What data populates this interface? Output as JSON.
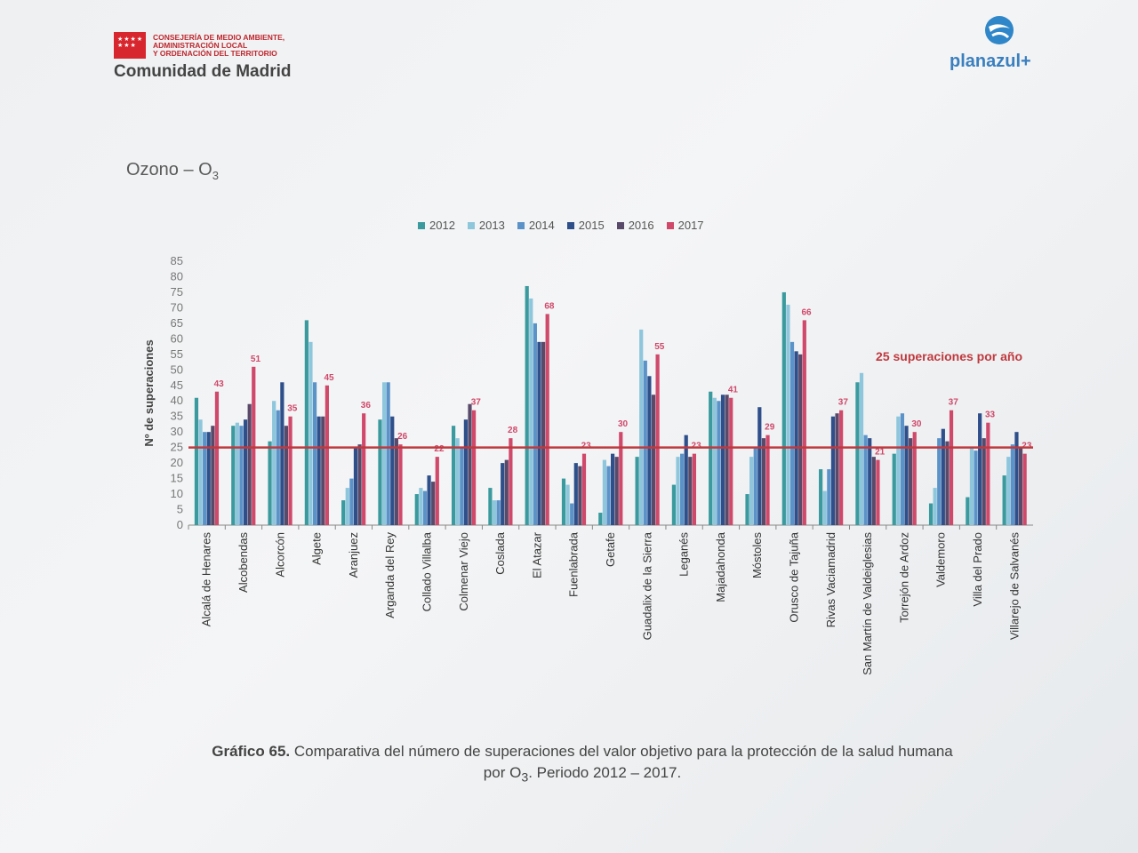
{
  "header": {
    "council_lines": [
      "CONSEJERÍA DE MEDIO AMBIENTE,",
      "ADMINISTRACIÓN LOCAL",
      "Y ORDENACIÓN DEL TERRITORIO"
    ],
    "region": "Comunidad de Madrid",
    "logo_text": "planazul+"
  },
  "section": {
    "title": "Ozono – O",
    "subscript": "3"
  },
  "caption": {
    "label": "Gráfico 65.",
    "text_line1": "Comparativa del número de superaciones del valor objetivo para la protección de la salud humana",
    "text_line2_pre": "por O",
    "text_line2_sub": "3",
    "text_line2_post": ". Periodo 2012 – 2017."
  },
  "colors": {
    "2012": "#3a9a9e",
    "2013": "#8ec6dc",
    "2014": "#5b93c9",
    "2015": "#2e4f8a",
    "2016": "#5a4a6a",
    "2017": "#d0486a",
    "threshold": "#c0393e"
  },
  "chart_data": {
    "type": "bar",
    "ylabel": "Nº de superaciones",
    "ylim": [
      0,
      85
    ],
    "yticks": [
      0,
      5,
      10,
      15,
      20,
      25,
      30,
      35,
      40,
      45,
      50,
      55,
      60,
      65,
      70,
      75,
      80,
      85
    ],
    "threshold": {
      "value": 25,
      "label": "25 superaciones por año"
    },
    "categories": [
      "Alcalá de Henares",
      "Alcobendas",
      "Alcorcón",
      "Algete",
      "Aranjuez",
      "Arganda del Rey",
      "Collado Villalba",
      "Colmenar Viejo",
      "Coslada",
      "El Atazar",
      "Fuenlabrada",
      "Getafe",
      "Guadalix de la Sierra",
      "Leganés",
      "Majadahonda",
      "Móstoles",
      "Orusco de Tajuña",
      "Rivas Vaciamadrid",
      "San Martín de Valdeiglesias",
      "Torrejón de Ardoz",
      "Valdemoro",
      "Villa del Prado",
      "Villarejo de Salvanés"
    ],
    "series": [
      {
        "name": "2012",
        "values": [
          41,
          32,
          27,
          66,
          8,
          34,
          10,
          32,
          12,
          77,
          15,
          4,
          22,
          13,
          43,
          10,
          75,
          18,
          46,
          23,
          7,
          9,
          16
        ]
      },
      {
        "name": "2013",
        "values": [
          34,
          33,
          40,
          59,
          12,
          46,
          12,
          28,
          8,
          73,
          13,
          21,
          63,
          22,
          41,
          22,
          71,
          11,
          49,
          35,
          12,
          25,
          22
        ]
      },
      {
        "name": "2014",
        "values": [
          30,
          32,
          37,
          46,
          15,
          46,
          11,
          25,
          8,
          65,
          7,
          19,
          53,
          23,
          40,
          25,
          59,
          18,
          29,
          36,
          28,
          24,
          26
        ]
      },
      {
        "name": "2015",
        "values": [
          30,
          34,
          46,
          35,
          25,
          35,
          16,
          34,
          20,
          59,
          20,
          23,
          48,
          29,
          42,
          38,
          56,
          35,
          28,
          32,
          31,
          36,
          30
        ]
      },
      {
        "name": "2016",
        "values": [
          32,
          39,
          32,
          35,
          26,
          28,
          14,
          39,
          21,
          59,
          19,
          22,
          42,
          22,
          42,
          28,
          55,
          36,
          22,
          28,
          27,
          28,
          25
        ]
      },
      {
        "name": "2017",
        "values": [
          43,
          51,
          35,
          45,
          36,
          26,
          22,
          37,
          28,
          68,
          23,
          30,
          55,
          23,
          41,
          29,
          66,
          37,
          21,
          30,
          37,
          33,
          23
        ]
      }
    ]
  }
}
